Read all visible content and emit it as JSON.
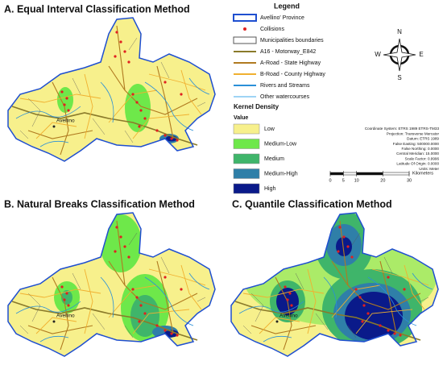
{
  "panels": [
    {
      "title": "A. Equal Interval Classification Method",
      "city_label": "Avellino"
    },
    {
      "title": "B. Natural Breaks Classification Method",
      "city_label": "Avellino"
    },
    {
      "title": "C. Quantile Classification Method",
      "city_label": "Avellino"
    }
  ],
  "legend": {
    "title": "Legend",
    "items": [
      {
        "label": "Avellino' Province",
        "symbol": "area",
        "color": "#1f4fd0"
      },
      {
        "label": "Collisions",
        "symbol": "dot",
        "color": "#e02020"
      },
      {
        "label": "Municipalities boundaries",
        "symbol": "area",
        "color": "#555555"
      },
      {
        "label": "A16 - Motorway_E842",
        "symbol": "line",
        "color": "#8a7a2a"
      },
      {
        "label": "A-Road - State Highway",
        "symbol": "line",
        "color": "#b07a20"
      },
      {
        "label": "B-Road - County Highway",
        "symbol": "line",
        "color": "#f0b030"
      },
      {
        "label": "Rivers and Streams",
        "symbol": "line",
        "color": "#2a90d8"
      },
      {
        "label": "Other watercourses",
        "symbol": "line",
        "color": "#9fd4f5"
      }
    ],
    "density_title": "Kernel Density",
    "density_subtitle": "Value",
    "classes": [
      {
        "label": "Low",
        "color": "#f7f08c"
      },
      {
        "label": "Medium-Low",
        "color": "#6ee84a"
      },
      {
        "label": "Medium",
        "color": "#3fb56a"
      },
      {
        "label": "Medium-High",
        "color": "#2f7fa8"
      },
      {
        "label": "High",
        "color": "#0a1a8a"
      }
    ]
  },
  "compass": {
    "n": "N",
    "e": "E",
    "s": "S",
    "w": "W"
  },
  "projection_info": [
    "Coordinate System: ETRS 1989 ETRS-TM33",
    "Projection: Transverse Mercator",
    "Datum: ETRS 1989",
    "False Easting: 500000.0000",
    "False Northing: 0.0000",
    "Central Meridian: 15.0000",
    "Scale Factor: 0.9996",
    "Latitude Of Origin: 0.0000",
    "Units: Meter"
  ],
  "scale_bar": {
    "ticks": [
      0,
      5,
      10,
      20,
      30
    ],
    "unit": "Kilometers"
  }
}
